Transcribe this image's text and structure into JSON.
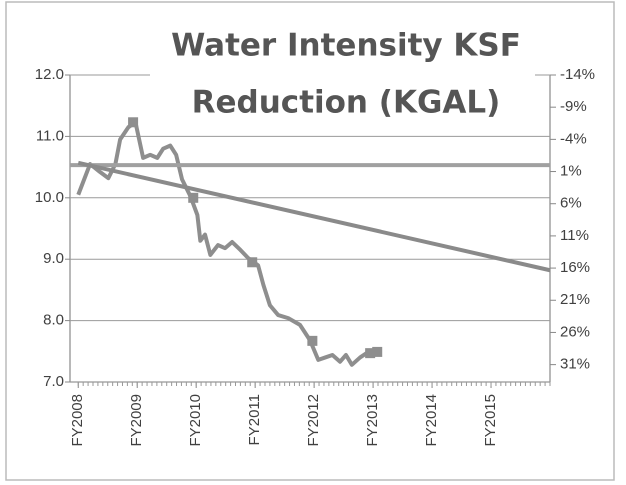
{
  "chart_data": {
    "type": "line",
    "title": [
      "Water Intensity KSF",
      "Reduction (KGAL)"
    ],
    "xlim": [
      2007.86,
      2016
    ],
    "xticks": [
      {
        "value": 2008,
        "label": "FY2008"
      },
      {
        "value": 2009,
        "label": "FY2009"
      },
      {
        "value": 2010,
        "label": "FY2010"
      },
      {
        "value": 2011,
        "label": "FY2011"
      },
      {
        "value": 2012,
        "label": "FY2012"
      },
      {
        "value": 2013,
        "label": "FY2013"
      },
      {
        "value": 2014,
        "label": "FY2014"
      },
      {
        "value": 2015,
        "label": "FY2015"
      }
    ],
    "ylim": [
      7,
      12
    ],
    "yticks": [
      {
        "value": 7,
        "label": "7.0"
      },
      {
        "value": 8,
        "label": "8.0"
      },
      {
        "value": 9,
        "label": "9.0"
      },
      {
        "value": 10,
        "label": "10.0"
      },
      {
        "value": 11,
        "label": "11.0"
      },
      {
        "value": 12,
        "label": "12.0"
      }
    ],
    "y2lim": [
      33.7,
      -14
    ],
    "y2ticks": [
      {
        "value": -14,
        "label": "-14%"
      },
      {
        "value": -9,
        "label": "-9%"
      },
      {
        "value": -4,
        "label": "-4%"
      },
      {
        "value": 1,
        "label": "1%"
      },
      {
        "value": 6,
        "label": "6%"
      },
      {
        "value": 11,
        "label": "11%"
      },
      {
        "value": 16,
        "label": "16%"
      },
      {
        "value": 21,
        "label": "21%"
      },
      {
        "value": 26,
        "label": "26%"
      },
      {
        "value": 31,
        "label": "31%"
      }
    ],
    "grid": true,
    "series": [
      {
        "color": "#8e8e8e",
        "x": [
          2008.0,
          2008.2,
          2008.37,
          2008.51,
          2008.63,
          2008.71,
          2008.85,
          2008.97,
          2009.1,
          2009.22,
          2009.34,
          2009.44,
          2009.56,
          2009.66,
          2009.76,
          2009.9,
          2010.02,
          2010.07,
          2010.15,
          2010.24,
          2010.37,
          2010.49,
          2010.61,
          2010.75,
          2010.88,
          2011.05,
          2011.14,
          2011.25,
          2011.39,
          2011.56,
          2011.76,
          2011.93,
          2012.07,
          2012.19,
          2012.31,
          2012.44,
          2012.54,
          2012.64,
          2012.78,
          2012.92,
          2013.07
        ],
        "values": [
          10.05,
          10.55,
          10.42,
          10.32,
          10.55,
          10.95,
          11.15,
          11.23,
          10.65,
          10.7,
          10.65,
          10.8,
          10.85,
          10.7,
          10.3,
          10.03,
          9.72,
          9.3,
          9.4,
          9.07,
          9.23,
          9.18,
          9.28,
          9.15,
          9.02,
          8.9,
          8.58,
          8.25,
          8.09,
          8.04,
          7.93,
          7.68,
          7.36,
          7.4,
          7.44,
          7.33,
          7.44,
          7.28,
          7.4,
          7.49,
          7.49
        ]
      },
      {
        "color": "#8e8e8e",
        "markers": true,
        "x": [
          2008.93,
          2009.95,
          2010.95,
          2011.97,
          2012.95,
          2013.07
        ],
        "values": [
          11.23,
          10.0,
          8.95,
          7.67,
          7.47,
          7.49
        ]
      },
      {
        "color": "#a0a0a0",
        "axis": "y2",
        "x": [
          2007.86,
          2016
        ],
        "values": [
          0,
          0
        ]
      },
      {
        "color": "#8a8a8a",
        "x": [
          2008,
          2016
        ],
        "values": [
          10.57,
          8.82
        ]
      }
    ]
  }
}
